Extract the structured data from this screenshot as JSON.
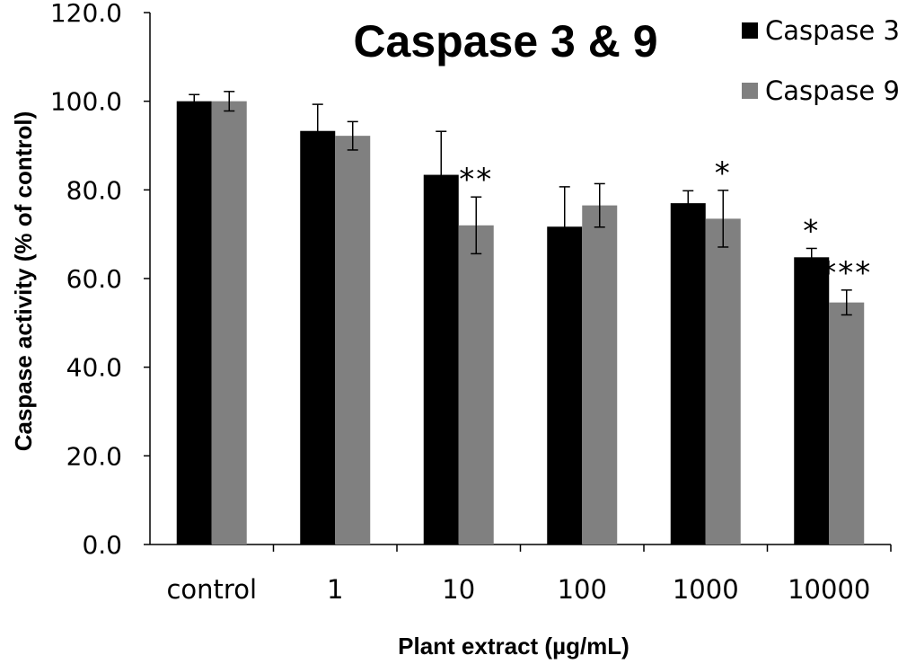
{
  "chart_data": {
    "type": "bar",
    "title": "Caspase 3 & 9",
    "xlabel": "Plant extract (µg/mL)",
    "ylabel": "Caspase activity (% of control)",
    "ylim": [
      0,
      120
    ],
    "yticks": [
      "0.0",
      "20.0",
      "40.0",
      "60.0",
      "80.0",
      "100.0",
      "120.0"
    ],
    "grid": false,
    "legend_position": "top-right",
    "categories": [
      "control",
      "1",
      "10",
      "100",
      "1000",
      "10000"
    ],
    "series": [
      {
        "name": "Caspase 3",
        "color": "#000000",
        "values": [
          100.0,
          93.3,
          83.4,
          71.7,
          77.0,
          64.8
        ],
        "errors": [
          1.5,
          6.0,
          9.8,
          9.0,
          2.8,
          2.0
        ],
        "significance": [
          "",
          "",
          "",
          "",
          "",
          "*"
        ]
      },
      {
        "name": "Caspase 9",
        "color": "#808080",
        "values": [
          100.0,
          92.2,
          72.0,
          76.5,
          73.5,
          54.6
        ],
        "errors": [
          2.2,
          3.2,
          6.4,
          4.9,
          6.4,
          2.8
        ],
        "significance": [
          "",
          "",
          "**",
          "",
          "*",
          "***"
        ]
      }
    ]
  }
}
